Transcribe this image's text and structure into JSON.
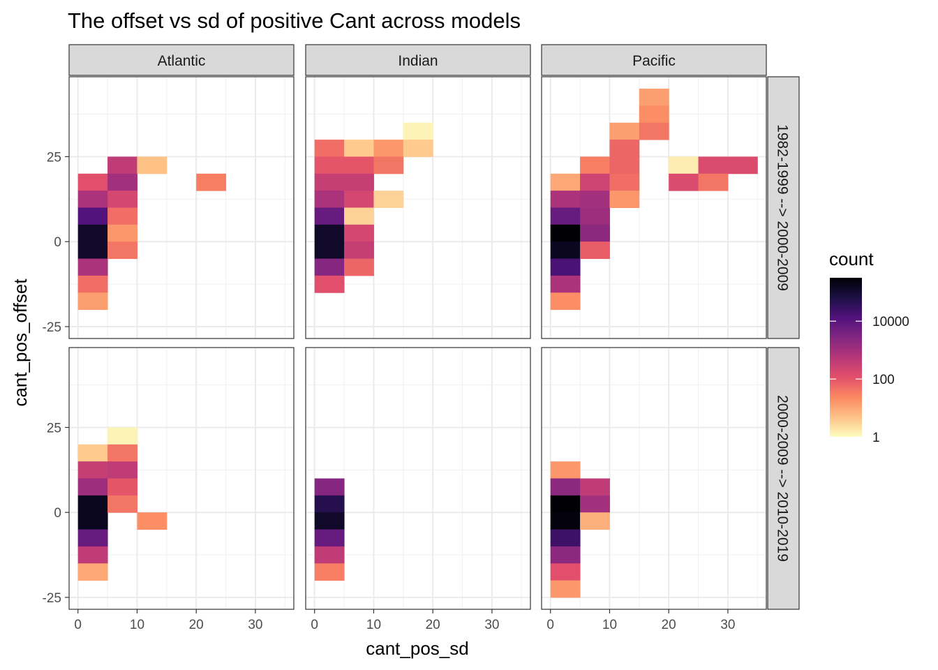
{
  "chart_data": {
    "type": "heatmap",
    "title": "The offset vs sd of positive Cant across models",
    "xlabel": "cant_pos_sd",
    "ylabel": "cant_pos_offset",
    "x_ticks": [
      "0",
      "10",
      "20",
      "30"
    ],
    "y_ticks": [
      "-25",
      "0",
      "25"
    ],
    "xlim": [
      -1.5,
      36.5
    ],
    "ylim": [
      -28.5,
      48.5
    ],
    "bin_width": 5,
    "columns": [
      "Atlantic",
      "Indian",
      "Pacific"
    ],
    "rows": [
      "1982-1999 --> 2000-2009",
      "2000-2009 --> 2010-2019"
    ],
    "legend": {
      "title": "count",
      "labels": [
        "10000",
        "100",
        "1"
      ],
      "scale": "log10",
      "min_log": 0,
      "max_log": 5.5,
      "colors": [
        "#FCFDBF",
        "#FEC287",
        "#FB8861",
        "#E3506B",
        "#B63679",
        "#822681",
        "#51127C",
        "#1C1044",
        "#000004"
      ]
    },
    "panels": [
      {
        "column": "Atlantic",
        "row": "1982-1999 --> 2000-2009",
        "tiles": [
          {
            "x": 0,
            "y": 15,
            "log_count": 2.1
          },
          {
            "x": 0,
            "y": 10,
            "log_count": 2.9
          },
          {
            "x": 0,
            "y": 5,
            "log_count": 4.1
          },
          {
            "x": 0,
            "y": 0,
            "log_count": 5.1
          },
          {
            "x": 0,
            "y": -5,
            "log_count": 5.1
          },
          {
            "x": 0,
            "y": -10,
            "log_count": 2.9
          },
          {
            "x": 0,
            "y": -15,
            "log_count": 1.7
          },
          {
            "x": 0,
            "y": -20,
            "log_count": 1.1
          },
          {
            "x": 5,
            "y": 20,
            "log_count": 2.6
          },
          {
            "x": 5,
            "y": 15,
            "log_count": 3.0
          },
          {
            "x": 5,
            "y": 10,
            "log_count": 2.3
          },
          {
            "x": 5,
            "y": 5,
            "log_count": 1.7
          },
          {
            "x": 5,
            "y": 0,
            "log_count": 1.2
          },
          {
            "x": 5,
            "y": -5,
            "log_count": 1.6
          },
          {
            "x": 10,
            "y": 20,
            "log_count": 0.7
          },
          {
            "x": 20,
            "y": 15,
            "log_count": 1.5
          }
        ]
      },
      {
        "column": "Indian",
        "row": "1982-1999 --> 2000-2009",
        "tiles": [
          {
            "x": 0,
            "y": 25,
            "log_count": 1.7
          },
          {
            "x": 0,
            "y": 20,
            "log_count": 2.0
          },
          {
            "x": 0,
            "y": 15,
            "log_count": 2.5
          },
          {
            "x": 0,
            "y": 10,
            "log_count": 2.9
          },
          {
            "x": 0,
            "y": 5,
            "log_count": 3.8
          },
          {
            "x": 0,
            "y": 0,
            "log_count": 5.1
          },
          {
            "x": 0,
            "y": -5,
            "log_count": 5.1
          },
          {
            "x": 0,
            "y": -10,
            "log_count": 3.4
          },
          {
            "x": 0,
            "y": -15,
            "log_count": 2.1
          },
          {
            "x": 5,
            "y": 25,
            "log_count": 0.6
          },
          {
            "x": 5,
            "y": 20,
            "log_count": 2.0
          },
          {
            "x": 5,
            "y": 15,
            "log_count": 2.5
          },
          {
            "x": 5,
            "y": 10,
            "log_count": 2.3
          },
          {
            "x": 5,
            "y": 5,
            "log_count": 0.5
          },
          {
            "x": 5,
            "y": 0,
            "log_count": 2.3
          },
          {
            "x": 5,
            "y": -5,
            "log_count": 2.5
          },
          {
            "x": 5,
            "y": -10,
            "log_count": 1.8
          },
          {
            "x": 10,
            "y": 25,
            "log_count": 1.2
          },
          {
            "x": 10,
            "y": 20,
            "log_count": 1.6
          },
          {
            "x": 10,
            "y": 10,
            "log_count": 0.5
          },
          {
            "x": 15,
            "y": 30,
            "log_count": 0.1
          },
          {
            "x": 15,
            "y": 25,
            "log_count": 0.6
          }
        ]
      },
      {
        "column": "Pacific",
        "row": "1982-1999 --> 2000-2009",
        "tiles": [
          {
            "x": 0,
            "y": 15,
            "log_count": 1.0
          },
          {
            "x": 0,
            "y": 10,
            "log_count": 2.9
          },
          {
            "x": 0,
            "y": 5,
            "log_count": 3.8
          },
          {
            "x": 0,
            "y": 0,
            "log_count": 5.5
          },
          {
            "x": 0,
            "y": -5,
            "log_count": 5.2
          },
          {
            "x": 0,
            "y": -10,
            "log_count": 4.2
          },
          {
            "x": 0,
            "y": -15,
            "log_count": 2.9
          },
          {
            "x": 0,
            "y": -20,
            "log_count": 1.3
          },
          {
            "x": 5,
            "y": 20,
            "log_count": 1.5
          },
          {
            "x": 5,
            "y": 15,
            "log_count": 2.4
          },
          {
            "x": 5,
            "y": 10,
            "log_count": 3.0
          },
          {
            "x": 5,
            "y": 5,
            "log_count": 3.1
          },
          {
            "x": 5,
            "y": 0,
            "log_count": 3.3
          },
          {
            "x": 5,
            "y": -5,
            "log_count": 1.9
          },
          {
            "x": 10,
            "y": 30,
            "log_count": 1.1
          },
          {
            "x": 10,
            "y": 25,
            "log_count": 1.8
          },
          {
            "x": 10,
            "y": 20,
            "log_count": 1.8
          },
          {
            "x": 10,
            "y": 15,
            "log_count": 1.7
          },
          {
            "x": 10,
            "y": 10,
            "log_count": 1.2
          },
          {
            "x": 15,
            "y": 40,
            "log_count": 1.1
          },
          {
            "x": 15,
            "y": 35,
            "log_count": 1.3
          },
          {
            "x": 15,
            "y": 30,
            "log_count": 1.6
          },
          {
            "x": 20,
            "y": 20,
            "log_count": 0.2
          },
          {
            "x": 20,
            "y": 15,
            "log_count": 2.2
          },
          {
            "x": 25,
            "y": 20,
            "log_count": 2.2
          },
          {
            "x": 25,
            "y": 15,
            "log_count": 1.6
          },
          {
            "x": 30,
            "y": 20,
            "log_count": 2.2
          }
        ]
      },
      {
        "column": "Atlantic",
        "row": "2000-2009 --> 2010-2019",
        "tiles": [
          {
            "x": 0,
            "y": 15,
            "log_count": 0.6
          },
          {
            "x": 0,
            "y": 10,
            "log_count": 2.5
          },
          {
            "x": 0,
            "y": 5,
            "log_count": 3.1
          },
          {
            "x": 0,
            "y": 0,
            "log_count": 5.2
          },
          {
            "x": 0,
            "y": -5,
            "log_count": 5.2
          },
          {
            "x": 0,
            "y": -10,
            "log_count": 3.8
          },
          {
            "x": 0,
            "y": -15,
            "log_count": 2.6
          },
          {
            "x": 0,
            "y": -20,
            "log_count": 1.0
          },
          {
            "x": 5,
            "y": 20,
            "log_count": 0.1
          },
          {
            "x": 5,
            "y": 15,
            "log_count": 1.6
          },
          {
            "x": 5,
            "y": 10,
            "log_count": 2.6
          },
          {
            "x": 5,
            "y": 5,
            "log_count": 2.0
          },
          {
            "x": 5,
            "y": 0,
            "log_count": 1.6
          },
          {
            "x": 10,
            "y": -5,
            "log_count": 1.3
          }
        ]
      },
      {
        "column": "Indian",
        "row": "2000-2009 --> 2010-2019",
        "tiles": [
          {
            "x": 0,
            "y": 5,
            "log_count": 3.4
          },
          {
            "x": 0,
            "y": 0,
            "log_count": 4.7
          },
          {
            "x": 0,
            "y": -5,
            "log_count": 5.1
          },
          {
            "x": 0,
            "y": -10,
            "log_count": 3.8
          },
          {
            "x": 0,
            "y": -15,
            "log_count": 2.6
          },
          {
            "x": 0,
            "y": -20,
            "log_count": 1.5
          }
        ]
      },
      {
        "column": "Pacific",
        "row": "2000-2009 --> 2010-2019",
        "tiles": [
          {
            "x": 0,
            "y": 10,
            "log_count": 1.2
          },
          {
            "x": 0,
            "y": 5,
            "log_count": 3.3
          },
          {
            "x": 0,
            "y": 0,
            "log_count": 5.5
          },
          {
            "x": 0,
            "y": -5,
            "log_count": 5.4
          },
          {
            "x": 0,
            "y": -10,
            "log_count": 4.4
          },
          {
            "x": 0,
            "y": -15,
            "log_count": 3.3
          },
          {
            "x": 0,
            "y": -20,
            "log_count": 2.1
          },
          {
            "x": 0,
            "y": -25,
            "log_count": 1.2
          },
          {
            "x": 5,
            "y": 5,
            "log_count": 2.6
          },
          {
            "x": 5,
            "y": 0,
            "log_count": 3.0
          },
          {
            "x": 5,
            "y": -5,
            "log_count": 0.9
          }
        ]
      }
    ]
  }
}
